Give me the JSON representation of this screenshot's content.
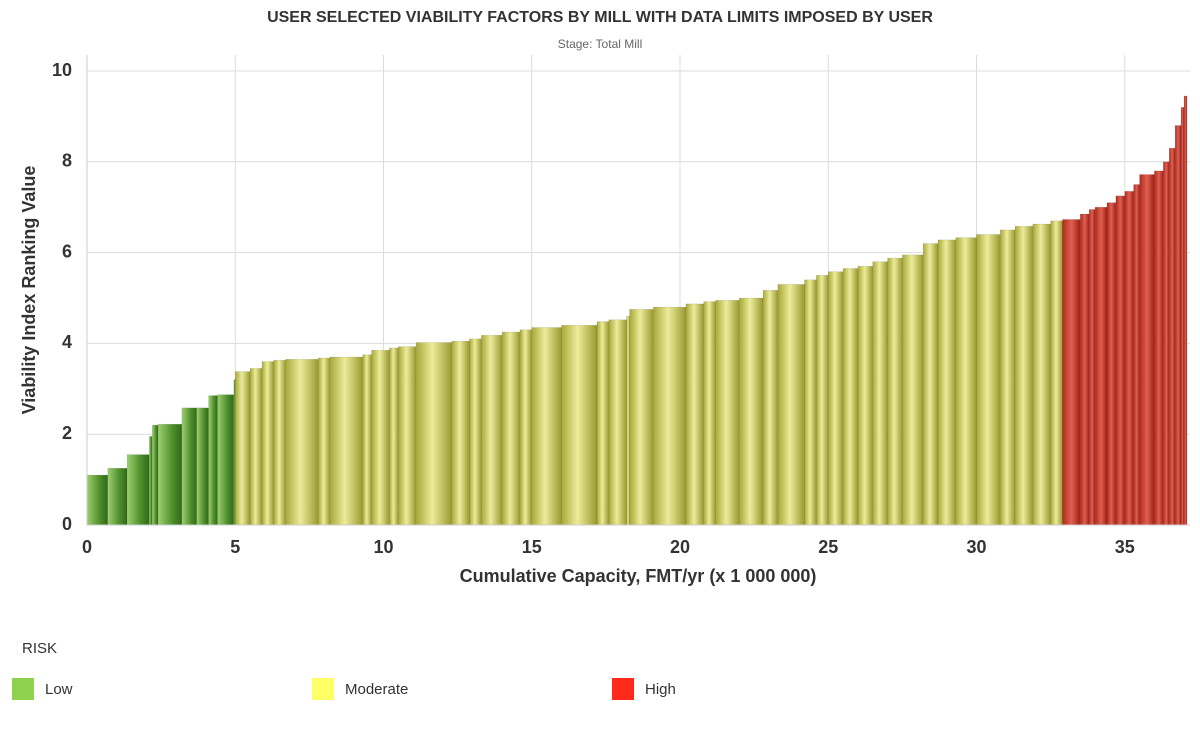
{
  "chart_data": {
    "type": "bar",
    "title": "USER SELECTED VIABILITY FACTORS BY MILL WITH DATA LIMITS IMPOSED BY USER",
    "subtitle": "Stage: Total Mill",
    "x_label": "Cumulative Capacity, FMT/yr (x 1 000 000)",
    "y_label": "Viability Index Ranking Value",
    "legend_title": "RISK",
    "xlim": [
      0,
      37.2
    ],
    "xticks": [
      0,
      5,
      10,
      15,
      20,
      25,
      30,
      35
    ],
    "ylim": [
      0,
      10
    ],
    "yticks": [
      0,
      2,
      4,
      6,
      8,
      10
    ],
    "grid": true,
    "series": [
      {
        "name": "Low",
        "color": "#8fd14f",
        "bins": [
          0,
          0.7,
          1.35,
          2.1,
          2.2,
          2.4,
          3.2,
          3.7,
          4.1,
          4.4,
          4.95,
          5.0
        ],
        "values": [
          1.1,
          1.25,
          1.55,
          1.95,
          2.2,
          2.22,
          2.58,
          2.58,
          2.85,
          2.87,
          3.2
        ]
      },
      {
        "name": "Moderate",
        "color": "#ffff66",
        "bins": [
          5.0,
          5.5,
          5.9,
          6.3,
          6.7,
          7.8,
          8.2,
          9.3,
          9.6,
          10.2,
          10.5,
          11.1,
          12.3,
          12.9,
          13.3,
          14.0,
          14.6,
          15.0,
          16.0,
          17.2,
          17.6,
          18.2,
          18.3,
          19.1,
          20.2,
          20.8,
          21.2,
          22.0,
          22.8,
          23.3,
          24.2,
          24.6,
          25.0,
          25.5,
          26.0,
          26.5,
          27.0,
          27.5,
          28.2,
          28.7,
          29.3,
          30.0,
          30.8,
          31.3,
          31.9,
          32.5,
          32.9
        ],
        "values": [
          3.38,
          3.45,
          3.6,
          3.63,
          3.65,
          3.68,
          3.7,
          3.75,
          3.85,
          3.9,
          3.93,
          4.02,
          4.05,
          4.1,
          4.18,
          4.25,
          4.3,
          4.35,
          4.4,
          4.48,
          4.52,
          4.6,
          4.75,
          4.8,
          4.87,
          4.92,
          4.95,
          5.0,
          5.17,
          5.3,
          5.4,
          5.5,
          5.58,
          5.65,
          5.7,
          5.8,
          5.88,
          5.95,
          6.2,
          6.28,
          6.33,
          6.4,
          6.5,
          6.58,
          6.63,
          6.7
        ]
      },
      {
        "name": "High",
        "color": "#ff2a1a",
        "bins": [
          32.9,
          33.5,
          33.8,
          34.0,
          34.4,
          34.7,
          35.0,
          35.3,
          35.5,
          36.0,
          36.3,
          36.5,
          36.7,
          36.9,
          37.0,
          37.1
        ],
        "values": [
          6.73,
          6.85,
          6.95,
          7.0,
          7.1,
          7.25,
          7.35,
          7.5,
          7.72,
          7.8,
          8.0,
          8.3,
          8.8,
          9.2,
          9.45
        ]
      }
    ]
  }
}
